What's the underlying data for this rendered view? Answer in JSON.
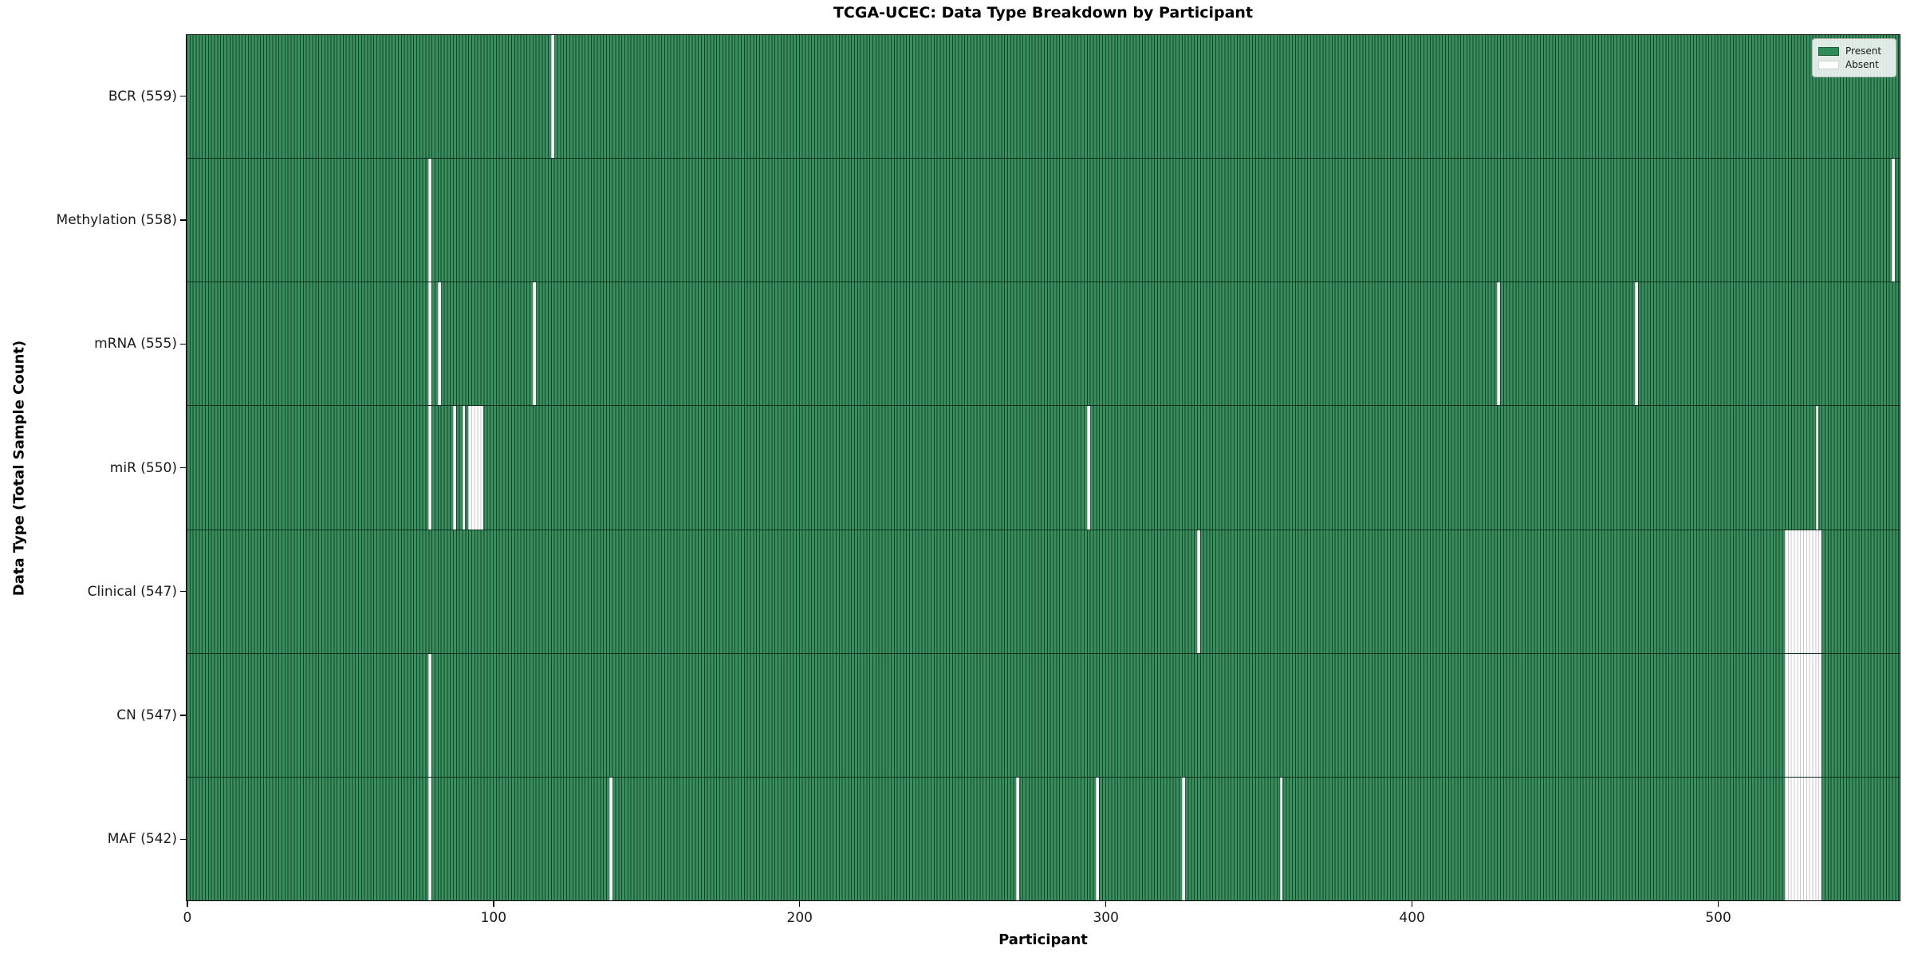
{
  "title": "TCGA-UCEC: Data Type Breakdown by Participant",
  "xlabel": "Participant",
  "ylabel": "Data Type (Total Sample Count)",
  "legend": {
    "present_label": "Present",
    "absent_label": "Absent",
    "position": "upper right"
  },
  "colors": {
    "present": "#2e8b57",
    "present_fill": "#38905e",
    "bar_edge": "#17422b",
    "absent_fill": "#ffffff",
    "absent_edge": "#c8c8c8"
  },
  "chart_data": {
    "type": "heatmap",
    "title": "TCGA-UCEC: Data Type Breakdown by Participant",
    "xlabel": "Participant",
    "ylabel": "Data Type (Total Sample Count)",
    "n_participants": 560,
    "xlim": [
      -0.5,
      559.5
    ],
    "x_ticks": [
      0,
      100,
      200,
      300,
      400,
      500
    ],
    "grid": false,
    "legend_position": "upper right",
    "value_legend": {
      "present": 1,
      "absent": 0
    },
    "rows": [
      {
        "data_type": "BCR",
        "label": "BCR (559)",
        "total": 559,
        "absent_participants": [
          119
        ]
      },
      {
        "data_type": "Methylation",
        "label": "Methylation (558)",
        "total": 558,
        "absent_participants": [
          79,
          557
        ]
      },
      {
        "data_type": "mRNA",
        "label": "mRNA (555)",
        "total": 555,
        "absent_participants": [
          79,
          82,
          113,
          428,
          473
        ]
      },
      {
        "data_type": "miR",
        "label": "miR (550)",
        "total": 550,
        "absent_participants": [
          79,
          87,
          90,
          92,
          93,
          94,
          95,
          96,
          294,
          532
        ]
      },
      {
        "data_type": "Clinical",
        "label": "Clinical (547)",
        "total": 547,
        "absent_participants": [
          330,
          522,
          523,
          524,
          525,
          526,
          527,
          528,
          529,
          530,
          531,
          532,
          533
        ]
      },
      {
        "data_type": "CN",
        "label": "CN (547)",
        "total": 547,
        "absent_participants": [
          79,
          522,
          523,
          524,
          525,
          526,
          527,
          528,
          529,
          530,
          531,
          532,
          533
        ]
      },
      {
        "data_type": "MAF",
        "label": "MAF (542)",
        "total": 542,
        "absent_participants": [
          79,
          138,
          271,
          297,
          325,
          357,
          522,
          523,
          524,
          525,
          526,
          527,
          528,
          529,
          530,
          531,
          532,
          533
        ]
      }
    ]
  }
}
